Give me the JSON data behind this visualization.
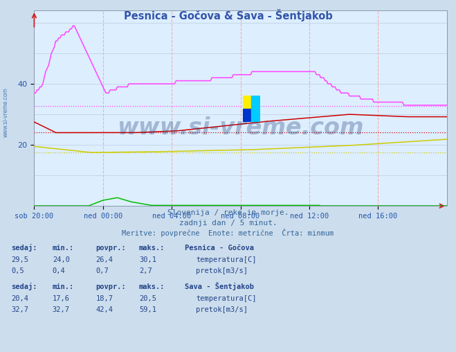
{
  "title": "Pesnica - Gočova & Sava - Šentjakob",
  "background_color": "#ccdded",
  "plot_bg_color": "#ddeeff",
  "title_color": "#3355aa",
  "xlabel_color": "#2255aa",
  "ylabel_color": "#2255aa",
  "x_tick_labels": [
    "sob 20:00",
    "ned 00:00",
    "ned 04:00",
    "ned 08:00",
    "ned 12:00",
    "ned 16:00"
  ],
  "x_tick_positions": [
    0,
    48,
    96,
    144,
    192,
    240
  ],
  "y_ticks": [
    20,
    40
  ],
  "ylim": [
    0,
    64
  ],
  "xlim": [
    0,
    288
  ],
  "watermark": "www.si-vreme.com",
  "subtitle1": "Slovenija / reke in morje.",
  "subtitle2": "zadnji dan / 5 minut.",
  "subtitle3": "Meritve: povprečne  Enote: metrične  Črta: minmum",
  "legend_pesnica_title": "Pesnica - Gočova",
  "legend_sava_title": "Sava - Šentjakob",
  "stats_pesnica_temp": {
    "sedaj": 29.5,
    "min": 24.0,
    "povpr": 26.4,
    "maks": 30.1
  },
  "stats_pesnica_pretok": {
    "sedaj": 0.5,
    "min": 0.4,
    "povpr": 0.7,
    "maks": 2.7
  },
  "stats_sava_temp": {
    "sedaj": 20.4,
    "min": 17.6,
    "povpr": 18.7,
    "maks": 20.5
  },
  "stats_sava_pretok": {
    "sedaj": 32.7,
    "min": 32.7,
    "povpr": 42.4,
    "maks": 59.1
  },
  "pesnica_temp_min": 24.0,
  "sava_temp_min": 17.6,
  "sava_pretok_min": 32.7,
  "colors": {
    "pesnica_temp": "#cc0000",
    "pesnica_pretok": "#00bb00",
    "sava_temp": "#cccc00",
    "sava_pretok": "#ff44ff"
  },
  "side_label": "www.si-vreme.com"
}
